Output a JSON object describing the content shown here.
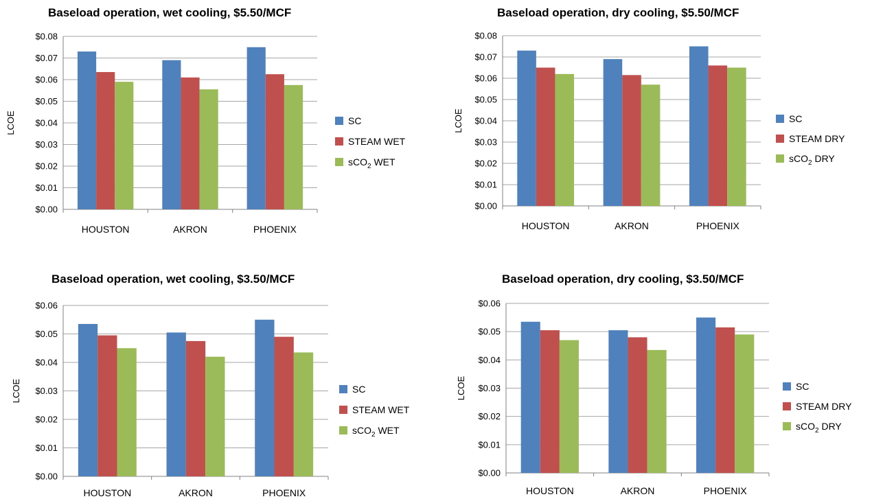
{
  "colors": {
    "sc": "#4f81bd",
    "steam": "#c0504d",
    "sco2": "#9bbb59"
  },
  "chart_data": [
    {
      "type": "bar",
      "title": "Baseload operation, wet cooling, $5.50/MCF",
      "ylabel": "LCOE",
      "xlabel": "",
      "ylim": [
        0,
        0.08
      ],
      "yticks": [
        "$0.00",
        "$0.01",
        "$0.02",
        "$0.03",
        "$0.04",
        "$0.05",
        "$0.06",
        "$0.07",
        "$0.08"
      ],
      "categories": [
        "HOUSTON",
        "AKRON",
        "PHOENIX"
      ],
      "legend_position": "right",
      "grid": true,
      "series": [
        {
          "name": "SC",
          "values": [
            0.073,
            0.069,
            0.075
          ]
        },
        {
          "name": "STEAM WET",
          "values": [
            0.0635,
            0.061,
            0.0625
          ]
        },
        {
          "name": "sCO2 WET",
          "name_base": "sCO",
          "name_sub": "2",
          "name_rest": " WET",
          "values": [
            0.059,
            0.0555,
            0.0575
          ]
        }
      ]
    },
    {
      "type": "bar",
      "title": "Baseload operation, dry cooling, $5.50/MCF",
      "ylabel": "LCOE",
      "xlabel": "",
      "ylim": [
        0,
        0.08
      ],
      "yticks": [
        "$0.00",
        "$0.01",
        "$0.02",
        "$0.03",
        "$0.04",
        "$0.05",
        "$0.06",
        "$0.07",
        "$0.08"
      ],
      "categories": [
        "HOUSTON",
        "AKRON",
        "PHOENIX"
      ],
      "legend_position": "right",
      "grid": true,
      "series": [
        {
          "name": "SC",
          "values": [
            0.073,
            0.069,
            0.075
          ]
        },
        {
          "name": "STEAM DRY",
          "values": [
            0.065,
            0.0615,
            0.066
          ]
        },
        {
          "name": "sCO2 DRY",
          "name_base": "sCO",
          "name_sub": "2",
          "name_rest": " DRY",
          "values": [
            0.062,
            0.057,
            0.065
          ]
        }
      ]
    },
    {
      "type": "bar",
      "title": "Baseload operation, wet cooling, $3.50/MCF",
      "ylabel": "LCOE",
      "xlabel": "",
      "ylim": [
        0,
        0.06
      ],
      "yticks": [
        "$0.00",
        "$0.01",
        "$0.02",
        "$0.03",
        "$0.04",
        "$0.05",
        "$0.06"
      ],
      "categories": [
        "HOUSTON",
        "AKRON",
        "PHOENIX"
      ],
      "legend_position": "right",
      "grid": true,
      "series": [
        {
          "name": "SC",
          "values": [
            0.0535,
            0.0505,
            0.055
          ]
        },
        {
          "name": "STEAM WET",
          "values": [
            0.0495,
            0.0475,
            0.049
          ]
        },
        {
          "name": "sCO2 WET",
          "name_base": "sCO",
          "name_sub": "2",
          "name_rest": " WET",
          "values": [
            0.045,
            0.042,
            0.0435
          ]
        }
      ]
    },
    {
      "type": "bar",
      "title": "Baseload operation, dry cooling, $3.50/MCF",
      "ylabel": "LCOE",
      "xlabel": "",
      "ylim": [
        0,
        0.06
      ],
      "yticks": [
        "$0.00",
        "$0.01",
        "$0.02",
        "$0.03",
        "$0.04",
        "$0.05",
        "$0.06"
      ],
      "categories": [
        "HOUSTON",
        "AKRON",
        "PHOENIX"
      ],
      "legend_position": "right",
      "grid": true,
      "series": [
        {
          "name": "SC",
          "values": [
            0.0535,
            0.0505,
            0.055
          ]
        },
        {
          "name": "STEAM DRY",
          "values": [
            0.0505,
            0.048,
            0.0515
          ]
        },
        {
          "name": "sCO2 DRY",
          "name_base": "sCO",
          "name_sub": "2",
          "name_rest": " DRY",
          "values": [
            0.047,
            0.0435,
            0.049
          ]
        }
      ]
    }
  ]
}
